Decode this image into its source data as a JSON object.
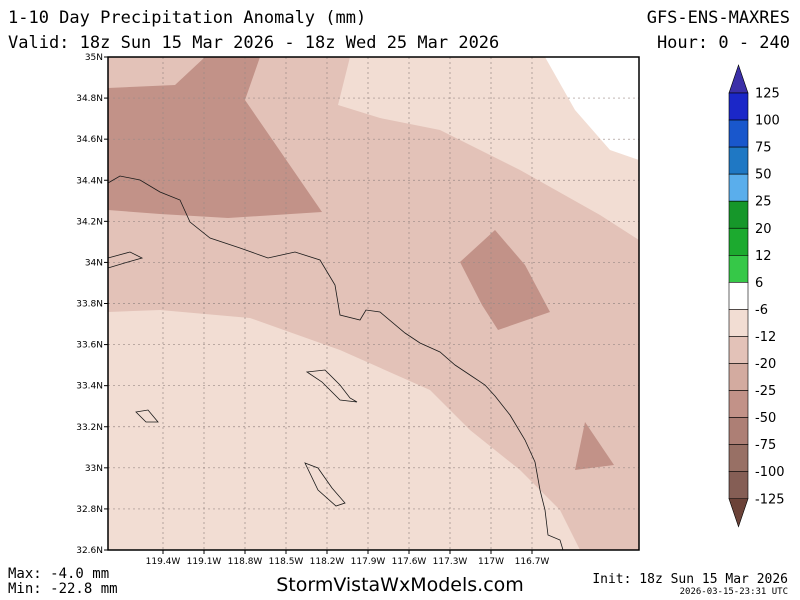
{
  "header": {
    "title": "1-10 Day Precipitation Anomaly (mm)",
    "valid": "Valid: 18z Sun 15 Mar 2026 - 18z Wed 25 Mar 2026",
    "model": "GFS-ENS-MAXRES",
    "hour": "Hour: 0 - 240"
  },
  "map": {
    "lat_labels": [
      "35N",
      "34.8N",
      "34.6N",
      "34.4N",
      "34.2N",
      "34N",
      "33.8N",
      "33.6N",
      "33.4N",
      "33.2N",
      "33N",
      "32.8N",
      "32.6N"
    ],
    "lon_labels": [
      "119.4W",
      "119.1W",
      "118.8W",
      "118.5W",
      "118.2W",
      "117.9W",
      "117.6W",
      "117.3W",
      "117W",
      "116.7W"
    ],
    "shading_colors": {
      "minus_6_to_minus_12": "#f2ddd3",
      "minus_12_to_minus_20": "#e3c2b8",
      "minus_20_to_minus_25": "#d3aba0",
      "minus_25_to_minus_50": "#c29288"
    }
  },
  "colorbar": {
    "labels": [
      "125",
      "100",
      "75",
      "50",
      "25",
      "20",
      "12",
      "6",
      "-6",
      "-12",
      "-20",
      "-25",
      "-50",
      "-75",
      "-100",
      "-125"
    ],
    "top_color": "#3b2fa8",
    "bottom_color": "#6b4238",
    "swatches": [
      "#1b27c8",
      "#1957cc",
      "#1f78c4",
      "#5aaeec",
      "#16972a",
      "#1caa2f",
      "#36c848",
      "#ffffff",
      "#f2ddd3",
      "#e3c2b8",
      "#d3aba0",
      "#c29288",
      "#ad7f75",
      "#987065",
      "#855e55"
    ]
  },
  "footer": {
    "max": "Max: -4.0 mm",
    "min": "Min: -22.8 mm",
    "site": "StormVistaWxModels.com",
    "init": "Init: 18z Sun 15 Mar 2026",
    "stamp": "2026-03-15-23:31 UTC"
  }
}
